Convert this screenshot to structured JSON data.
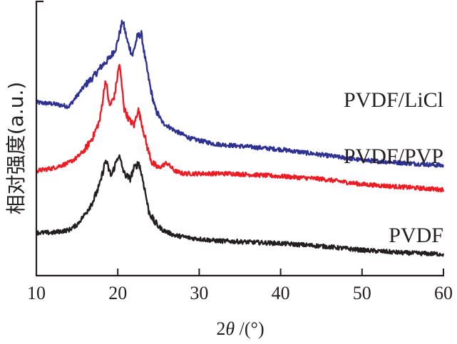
{
  "chart_data": {
    "type": "line",
    "title": "",
    "xlabel": "2θ /(°)",
    "ylabel": "相对强度(a.u.)",
    "xlim": [
      10,
      60
    ],
    "ylim": [
      0,
      100
    ],
    "xticks": [
      10,
      20,
      30,
      40,
      50,
      60
    ],
    "xtick_labels": [
      "10",
      "20",
      "30",
      "40",
      "50",
      "60"
    ],
    "yticks": [],
    "grid": false,
    "legend": "inline labels at right of each curve",
    "series": [
      {
        "name": "PVDF/LiCl",
        "color": "#2e3192",
        "x": [
          10,
          12,
          14,
          15,
          16,
          17,
          18,
          19,
          19.8,
          20.6,
          21.2,
          21.8,
          22.4,
          22.9,
          23.4,
          24,
          24.6,
          25.5,
          27,
          29,
          32,
          36,
          40,
          45,
          50,
          55,
          60
        ],
        "y": [
          64.5,
          64,
          63,
          67,
          71,
          74,
          78,
          81,
          85,
          95,
          87,
          82,
          89,
          90,
          80,
          70,
          62,
          57,
          54,
          51,
          49,
          48,
          47,
          45,
          43,
          42,
          41
        ]
      },
      {
        "name": "PVDF/PVP",
        "color": "#ed1c24",
        "x": [
          10,
          12,
          14,
          15,
          16,
          17,
          17.8,
          18.5,
          19,
          19.6,
          20.2,
          20.8,
          21.4,
          22,
          22.5,
          23,
          23.6,
          24.2,
          25,
          26,
          27,
          28,
          30,
          34,
          40,
          45,
          50,
          55,
          60
        ],
        "y": [
          39,
          40,
          42,
          44,
          47,
          52,
          58,
          73,
          63,
          67,
          79,
          62,
          58,
          56,
          62,
          56,
          48,
          42,
          40,
          42,
          39,
          38,
          38,
          38,
          37,
          36,
          34,
          33,
          32
        ]
      },
      {
        "name": "PVDF",
        "color": "#231f20",
        "x": [
          10,
          12,
          14,
          15,
          16,
          17,
          17.8,
          18.5,
          19.2,
          20.1,
          20.8,
          21.5,
          22,
          22.6,
          23.2,
          23.8,
          24.5,
          25.5,
          27,
          29,
          32,
          36,
          40,
          45,
          50,
          55,
          60
        ],
        "y": [
          16,
          16,
          17,
          19,
          23,
          28,
          34,
          43,
          37,
          45,
          38,
          36,
          40,
          42,
          34,
          24,
          20,
          17,
          15,
          14,
          13,
          12.5,
          12,
          11,
          9.5,
          8.5,
          8
        ]
      }
    ]
  }
}
